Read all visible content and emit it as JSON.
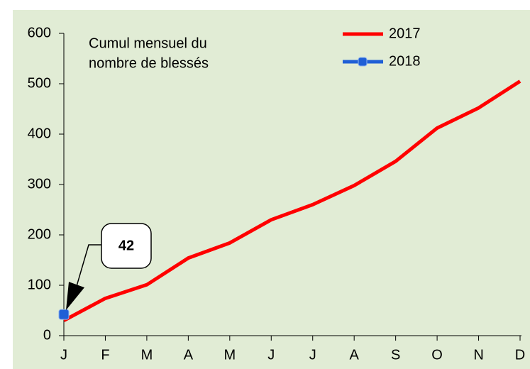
{
  "chart_data": {
    "type": "line",
    "title": [
      "Cumul mensuel du",
      "nombre de blessés"
    ],
    "categories": [
      "J",
      "F",
      "M",
      "A",
      "M",
      "J",
      "J",
      "A",
      "S",
      "O",
      "N",
      "D"
    ],
    "series": [
      {
        "name": "2017",
        "color": "#ff0000",
        "values": [
          30,
          74,
          101,
          154,
          184,
          230,
          260,
          298,
          346,
          412,
          452,
          505
        ]
      },
      {
        "name": "2018",
        "color": "#1f5fd6",
        "values": [
          42,
          null,
          null,
          null,
          null,
          null,
          null,
          null,
          null,
          null,
          null,
          null
        ]
      }
    ],
    "ylim": [
      0,
      600
    ],
    "yticks": [
      0,
      100,
      200,
      300,
      400,
      500,
      600
    ],
    "legend": "top-right",
    "grid": false
  }
}
